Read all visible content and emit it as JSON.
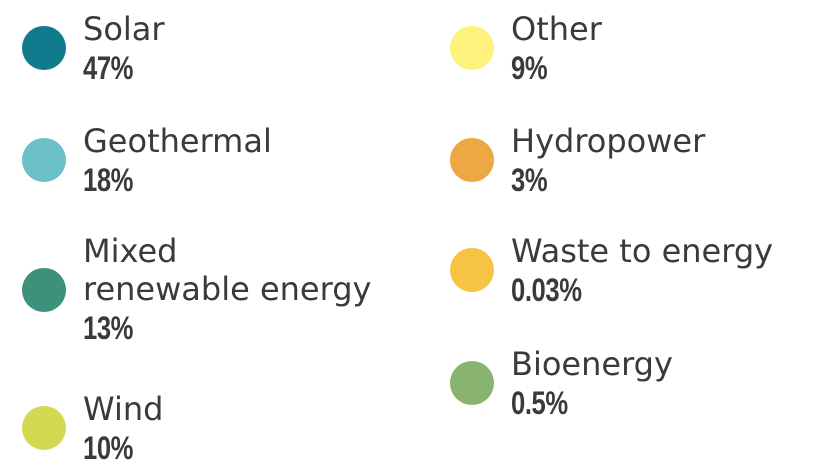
{
  "chart_data": {
    "type": "pie",
    "categories": [
      "Solar",
      "Geothermal",
      "Mixed\nrenewable energy",
      "Wind",
      "Other",
      "Hydropower",
      "Waste to energy",
      "Bioenergy"
    ],
    "values": [
      47,
      18,
      13,
      10,
      9,
      3,
      0.03,
      0.5
    ],
    "value_labels": [
      "47%",
      "18%",
      "13%",
      "10%",
      "9%",
      "3%",
      "0.03%",
      "0.5%"
    ],
    "colors": [
      "#107b8c",
      "#6cc1c9",
      "#3d9079",
      "#d3da52",
      "#fdf27c",
      "#eea843",
      "#f6c343",
      "#89b46f"
    ]
  }
}
